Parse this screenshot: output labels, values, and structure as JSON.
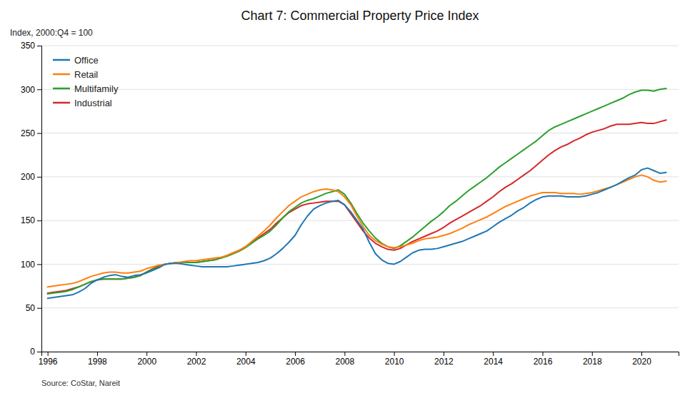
{
  "chart_data": {
    "type": "line",
    "title": "Chart 7: Commercial Property Price Index",
    "y_label": "Index, 2000:Q4 = 100",
    "annotations": [
      "Source: CoStar, Nareit"
    ],
    "x": [
      1996,
      1996.25,
      1996.5,
      1996.75,
      1997,
      1997.25,
      1997.5,
      1997.75,
      1998,
      1998.25,
      1998.5,
      1998.75,
      1999,
      1999.25,
      1999.5,
      1999.75,
      2000,
      2000.25,
      2000.5,
      2000.75,
      2001,
      2001.25,
      2001.5,
      2001.75,
      2002,
      2002.25,
      2002.5,
      2002.75,
      2003,
      2003.25,
      2003.5,
      2003.75,
      2004,
      2004.25,
      2004.5,
      2004.75,
      2005,
      2005.25,
      2005.5,
      2005.75,
      2006,
      2006.25,
      2006.5,
      2006.75,
      2007,
      2007.25,
      2007.5,
      2007.75,
      2008,
      2008.25,
      2008.5,
      2008.75,
      2009,
      2009.25,
      2009.5,
      2009.75,
      2010,
      2010.25,
      2010.5,
      2010.75,
      2011,
      2011.25,
      2011.5,
      2011.75,
      2012,
      2012.25,
      2012.5,
      2012.75,
      2013,
      2013.25,
      2013.5,
      2013.75,
      2014,
      2014.25,
      2014.5,
      2014.75,
      2015,
      2015.25,
      2015.5,
      2015.75,
      2016,
      2016.25,
      2016.5,
      2016.75,
      2017,
      2017.25,
      2017.5,
      2017.75,
      2018,
      2018.25,
      2018.5,
      2018.75,
      2019,
      2019.25,
      2019.5,
      2019.75,
      2020,
      2020.25,
      2020.5,
      2020.75,
      2021
    ],
    "series": [
      {
        "name": "Office",
        "values": [
          61,
          62,
          63,
          64,
          65,
          68,
          72,
          78,
          82,
          85,
          87,
          88,
          86,
          85,
          87,
          88,
          90,
          93,
          96,
          100,
          101,
          101,
          100,
          99,
          98,
          97,
          97,
          97,
          97,
          97,
          98,
          99,
          100,
          101,
          102,
          104,
          107,
          112,
          118,
          125,
          133,
          145,
          155,
          163,
          167,
          170,
          172,
          173,
          168,
          160,
          150,
          140,
          125,
          112,
          105,
          101,
          100,
          103,
          108,
          113,
          116,
          117,
          117,
          118,
          120,
          122,
          124,
          126,
          129,
          132,
          135,
          138,
          143,
          148,
          152,
          156,
          161,
          165,
          170,
          174,
          177,
          178,
          178,
          178,
          177,
          177,
          177,
          178,
          180,
          182,
          185,
          188,
          191,
          195,
          199,
          202,
          208,
          210,
          207,
          204,
          205
        ]
      },
      {
        "name": "Retail",
        "values": [
          74,
          75,
          76,
          77,
          78,
          80,
          83,
          86,
          88,
          90,
          91,
          91,
          90,
          90,
          91,
          92,
          95,
          97,
          99,
          100,
          101,
          102,
          103,
          104,
          104,
          105,
          106,
          107,
          108,
          110,
          113,
          116,
          120,
          126,
          132,
          138,
          145,
          153,
          160,
          167,
          172,
          177,
          180,
          183,
          185,
          186,
          185,
          183,
          177,
          168,
          155,
          143,
          133,
          127,
          123,
          120,
          119,
          120,
          122,
          124,
          127,
          129,
          130,
          131,
          133,
          135,
          138,
          141,
          145,
          148,
          151,
          154,
          158,
          162,
          166,
          169,
          172,
          175,
          178,
          180,
          182,
          182,
          182,
          181,
          181,
          181,
          180,
          181,
          182,
          184,
          186,
          188,
          191,
          194,
          197,
          200,
          202,
          200,
          196,
          194,
          195
        ]
      },
      {
        "name": "Multifamily",
        "values": [
          66,
          67,
          68,
          69,
          71,
          74,
          77,
          80,
          82,
          83,
          83,
          83,
          83,
          84,
          85,
          87,
          91,
          94,
          97,
          100,
          101,
          102,
          102,
          102,
          102,
          103,
          104,
          105,
          107,
          109,
          112,
          115,
          119,
          124,
          129,
          133,
          138,
          145,
          153,
          160,
          165,
          170,
          173,
          175,
          178,
          181,
          183,
          185,
          180,
          170,
          158,
          147,
          138,
          130,
          124,
          120,
          118,
          121,
          126,
          131,
          137,
          143,
          149,
          154,
          160,
          167,
          172,
          178,
          184,
          189,
          194,
          199,
          205,
          211,
          216,
          221,
          226,
          231,
          236,
          241,
          247,
          253,
          257,
          260,
          263,
          266,
          269,
          272,
          275,
          278,
          281,
          284,
          287,
          290,
          294,
          297,
          299,
          299,
          298,
          300,
          301
        ]
      },
      {
        "name": "Industrial",
        "values": [
          67,
          68,
          69,
          70,
          72,
          74,
          77,
          80,
          82,
          83,
          83,
          83,
          83,
          84,
          85,
          87,
          91,
          95,
          98,
          100,
          101,
          102,
          102,
          102,
          102,
          103,
          104,
          105,
          107,
          110,
          113,
          116,
          120,
          125,
          130,
          135,
          140,
          147,
          153,
          159,
          163,
          167,
          169,
          170,
          171,
          172,
          172,
          172,
          168,
          158,
          148,
          138,
          130,
          124,
          120,
          117,
          116,
          118,
          122,
          126,
          129,
          132,
          135,
          138,
          142,
          147,
          151,
          155,
          159,
          163,
          167,
          172,
          177,
          183,
          188,
          192,
          197,
          202,
          207,
          213,
          219,
          225,
          230,
          234,
          237,
          241,
          244,
          248,
          251,
          253,
          255,
          258,
          260,
          260,
          260,
          261,
          262,
          261,
          261,
          263,
          265
        ]
      }
    ],
    "xlim": [
      1995.75,
      2021.5
    ],
    "xticks": [
      1996,
      1998,
      2000,
      2002,
      2004,
      2006,
      2008,
      2010,
      2012,
      2014,
      2016,
      2018,
      2020
    ],
    "ylim": [
      0,
      350
    ],
    "yticks": [
      0,
      50,
      100,
      150,
      200,
      250,
      300,
      350
    ],
    "grid": true,
    "legend": "upper left"
  }
}
